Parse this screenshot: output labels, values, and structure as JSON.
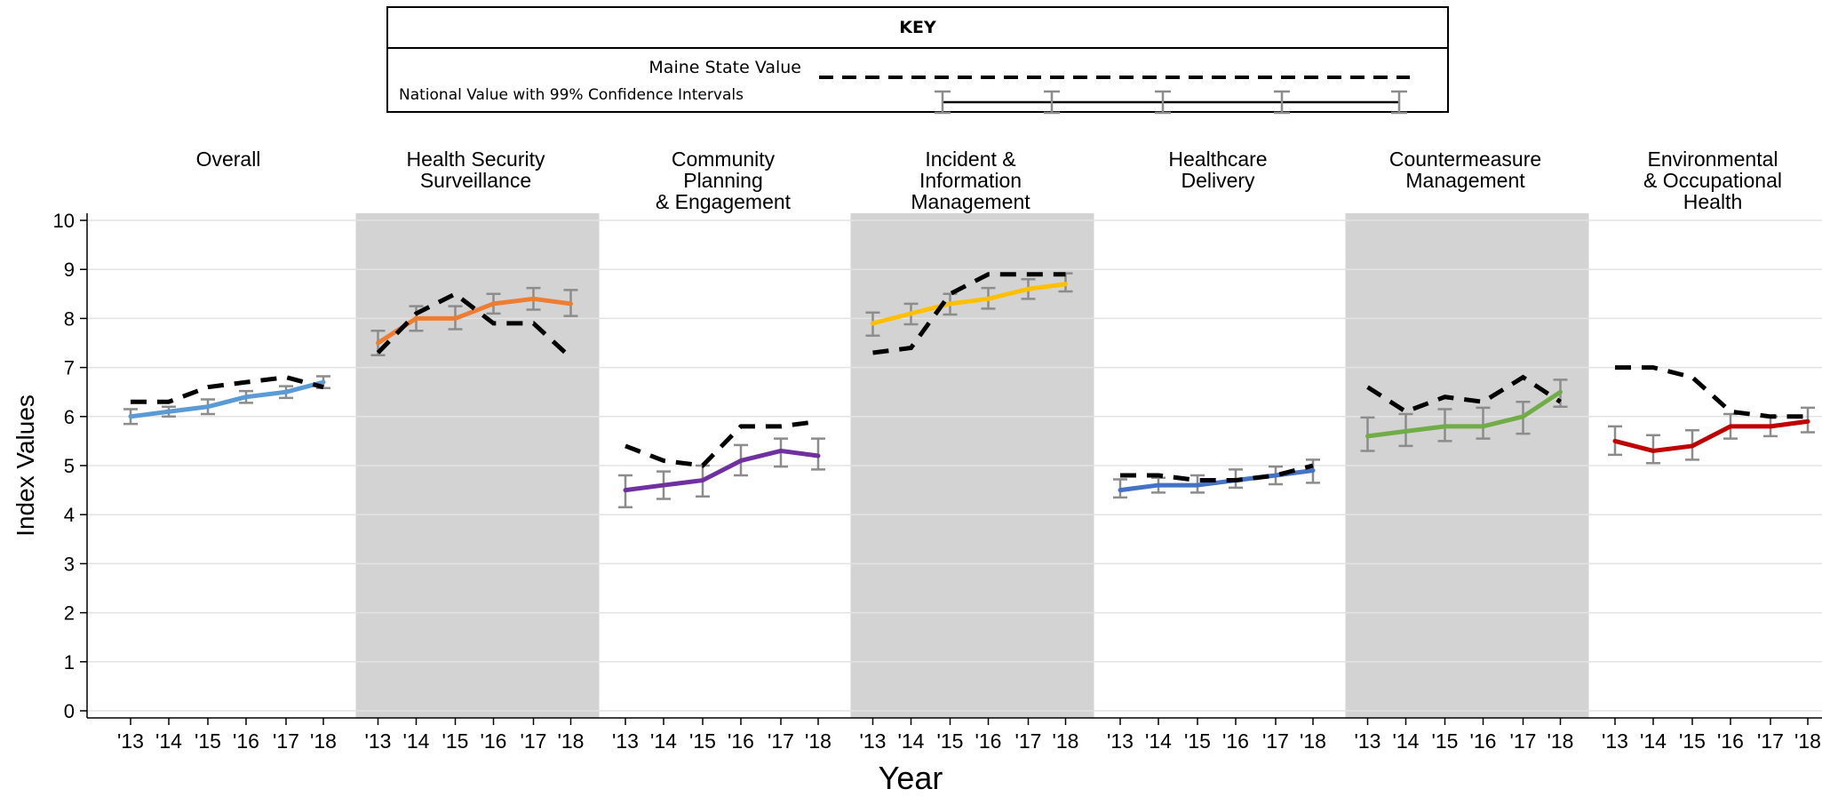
{
  "key": {
    "title": "KEY",
    "state_label": "Maine State Value",
    "national_label": "National Value with 99% Confidence Intervals"
  },
  "chart_data": {
    "type": "line",
    "xlabel": "Year",
    "ylabel": "Index Values",
    "ylim": [
      0,
      10
    ],
    "yticks": [
      0,
      1,
      2,
      3,
      4,
      5,
      6,
      7,
      8,
      9,
      10
    ],
    "x_tick_labels": [
      "'13",
      "'14",
      "'15",
      "'16",
      "'17",
      "'18"
    ],
    "grid": true,
    "series_legend": [
      {
        "name": "Maine State Value",
        "style": "dashed",
        "color": "#000000"
      },
      {
        "name": "National Value with 99% Confidence Intervals",
        "style": "solid with error bars",
        "color": "#000000"
      }
    ],
    "panels": [
      {
        "title": [
          "Overall"
        ],
        "shaded": false,
        "color": "#5B9BD5",
        "national": [
          6.0,
          6.1,
          6.2,
          6.4,
          6.5,
          6.7
        ],
        "ci_low": [
          5.85,
          6.0,
          6.05,
          6.28,
          6.38,
          6.58
        ],
        "ci_high": [
          6.15,
          6.2,
          6.35,
          6.52,
          6.62,
          6.82
        ],
        "state": [
          6.3,
          6.3,
          6.6,
          6.7,
          6.8,
          6.6
        ]
      },
      {
        "title": [
          "Health Security",
          "Surveillance"
        ],
        "shaded": true,
        "color": "#ED7D31",
        "national": [
          7.5,
          8.0,
          8.0,
          8.3,
          8.4,
          8.3
        ],
        "ci_low": [
          7.25,
          7.75,
          7.78,
          8.1,
          8.18,
          8.05
        ],
        "ci_high": [
          7.75,
          8.25,
          8.25,
          8.5,
          8.62,
          8.58
        ],
        "state": [
          7.3,
          8.1,
          8.5,
          7.9,
          7.9,
          7.2
        ]
      },
      {
        "title": [
          "Community",
          "Planning",
          "& Engagement"
        ],
        "shaded": false,
        "color": "#7030A0",
        "national": [
          4.5,
          4.6,
          4.7,
          5.1,
          5.3,
          5.2
        ],
        "ci_low": [
          4.15,
          4.32,
          4.37,
          4.8,
          4.98,
          4.92
        ],
        "ci_high": [
          4.8,
          4.88,
          5.0,
          5.42,
          5.55,
          5.55
        ],
        "state": [
          5.4,
          5.1,
          5.0,
          5.8,
          5.8,
          5.9
        ]
      },
      {
        "title": [
          "Incident &",
          "Information",
          "Management"
        ],
        "shaded": true,
        "color": "#FFC000",
        "national": [
          7.9,
          8.1,
          8.3,
          8.4,
          8.6,
          8.7
        ],
        "ci_low": [
          7.65,
          7.88,
          8.08,
          8.2,
          8.4,
          8.55
        ],
        "ci_high": [
          8.12,
          8.3,
          8.5,
          8.62,
          8.8,
          8.92
        ],
        "state": [
          7.3,
          7.4,
          8.5,
          8.9,
          8.9,
          8.9
        ]
      },
      {
        "title": [
          "Healthcare",
          "Delivery"
        ],
        "shaded": false,
        "color": "#4472C4",
        "national": [
          4.5,
          4.6,
          4.6,
          4.7,
          4.8,
          4.9
        ],
        "ci_low": [
          4.35,
          4.45,
          4.45,
          4.55,
          4.62,
          4.65
        ],
        "ci_high": [
          4.72,
          4.75,
          4.8,
          4.92,
          4.98,
          5.12
        ],
        "state": [
          4.8,
          4.8,
          4.7,
          4.7,
          4.8,
          5.0
        ]
      },
      {
        "title": [
          "Countermeasure",
          "Management"
        ],
        "shaded": true,
        "color": "#70AD47",
        "national": [
          5.6,
          5.7,
          5.8,
          5.8,
          6.0,
          6.5
        ],
        "ci_low": [
          5.3,
          5.4,
          5.5,
          5.55,
          5.65,
          6.2
        ],
        "ci_high": [
          5.98,
          6.05,
          6.15,
          6.18,
          6.3,
          6.75
        ],
        "state": [
          6.6,
          6.1,
          6.4,
          6.3,
          6.8,
          6.3
        ]
      },
      {
        "title": [
          "Environmental",
          "& Occupational",
          "Health"
        ],
        "shaded": false,
        "color": "#C00000",
        "national": [
          5.5,
          5.3,
          5.4,
          5.8,
          5.8,
          5.9
        ],
        "ci_low": [
          5.22,
          5.05,
          5.12,
          5.55,
          5.6,
          5.68
        ],
        "ci_high": [
          5.8,
          5.62,
          5.72,
          6.05,
          6.0,
          6.18
        ],
        "state": [
          7.0,
          7.0,
          6.8,
          6.1,
          6.0,
          6.0
        ]
      }
    ]
  },
  "colors": {
    "shade": "#D3D3D3",
    "grid": "#E3E3E3",
    "error_bar": "#8C8C8C",
    "state_line": "#000000"
  }
}
